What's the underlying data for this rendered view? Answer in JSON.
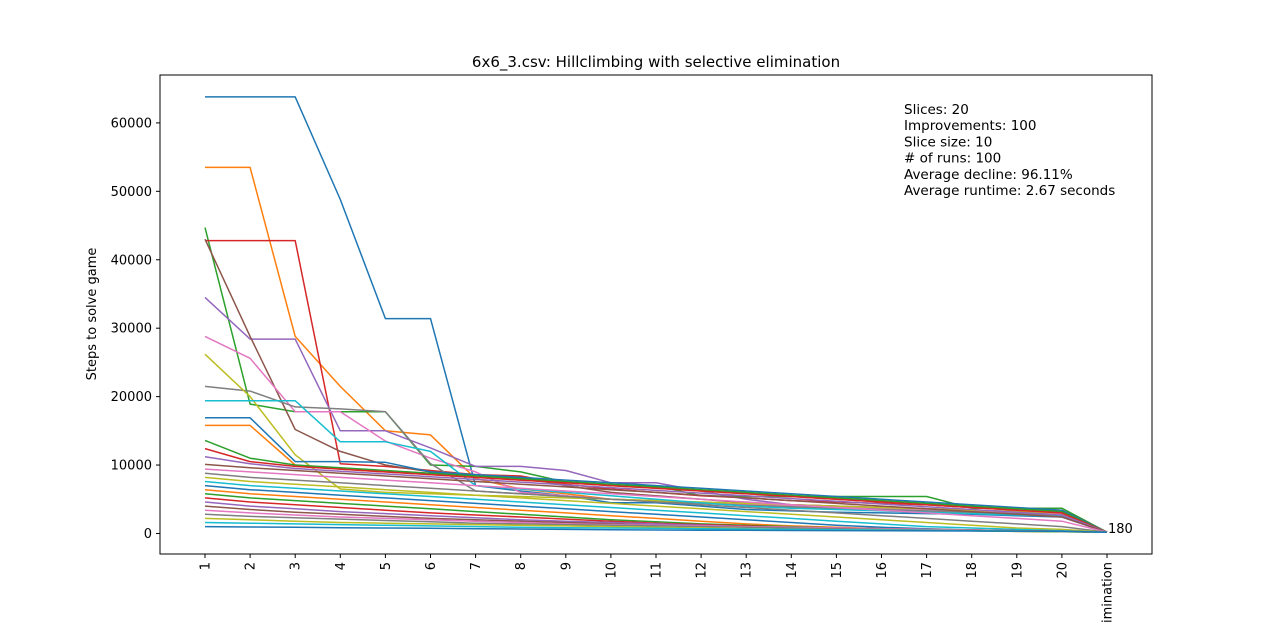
{
  "chart_data": {
    "type": "line",
    "title": "6x6_3.csv: Hillclimbing with selective elimination",
    "ylabel": "Steps to solve game",
    "xlabel": "",
    "categories": [
      "1",
      "2",
      "3",
      "4",
      "5",
      "6",
      "7",
      "8",
      "9",
      "10",
      "11",
      "12",
      "13",
      "14",
      "15",
      "16",
      "17",
      "18",
      "19",
      "20",
      "Elimination"
    ],
    "ylim": [
      -3000,
      67000
    ],
    "yticks": [
      0,
      10000,
      20000,
      30000,
      40000,
      50000,
      60000
    ],
    "ytick_labels": [
      "0",
      "10000",
      "20000",
      "30000",
      "40000",
      "50000",
      "60000"
    ],
    "grid": false,
    "end_annotation": "180",
    "info_lines": [
      "Slices: 20",
      "Improvements: 100",
      "Slice size: 10",
      "# of runs: 100",
      "Average decline: 96.11%",
      "Average runtime: 2.67 seconds"
    ],
    "colors": [
      "#1f77b4",
      "#ff7f0e",
      "#2ca02c",
      "#d62728",
      "#9467bd",
      "#8c564b",
      "#e377c2",
      "#7f7f7f",
      "#bcbd22",
      "#17becf"
    ],
    "series": [
      {
        "values": [
          63800,
          63800,
          63800,
          48800,
          31400,
          31400,
          7000,
          6200,
          5500,
          4500,
          4500,
          4000,
          3500,
          3300,
          3100,
          3000,
          2900,
          2800,
          2600,
          2400,
          180
        ]
      },
      {
        "values": [
          53500,
          53500,
          28800,
          21500,
          15000,
          14400,
          8000,
          6500,
          5800,
          5000,
          4800,
          4500,
          4200,
          3800,
          3600,
          3400,
          3200,
          3000,
          2800,
          2600,
          180
        ]
      },
      {
        "values": [
          44700,
          18900,
          17800,
          17800,
          17800,
          10000,
          9800,
          9000,
          7500,
          7000,
          7000,
          5500,
          5400,
          5400,
          5400,
          5400,
          5400,
          3700,
          3700,
          3700,
          180
        ]
      },
      {
        "values": [
          42800,
          42800,
          42800,
          10200,
          9800,
          9200,
          8600,
          8400,
          7200,
          6500,
          6000,
          5500,
          5200,
          4800,
          4600,
          4400,
          4200,
          3800,
          3600,
          3400,
          180
        ]
      },
      {
        "values": [
          34500,
          28400,
          28400,
          15000,
          15000,
          12500,
          9800,
          9800,
          9200,
          7400,
          7400,
          6200,
          5000,
          4200,
          4000,
          3800,
          3600,
          3400,
          3200,
          3000,
          180
        ]
      },
      {
        "values": [
          43000,
          28800,
          15200,
          12000,
          10000,
          9000,
          8500,
          8200,
          7000,
          6000,
          5500,
          5000,
          4500,
          4200,
          4000,
          3800,
          3600,
          3400,
          3200,
          3000,
          180
        ]
      },
      {
        "values": [
          28800,
          25600,
          17800,
          17800,
          13500,
          11000,
          9000,
          6000,
          5500,
          5000,
          4800,
          4500,
          4300,
          4100,
          3900,
          3700,
          3500,
          3300,
          3100,
          2900,
          180
        ]
      },
      {
        "values": [
          21500,
          20800,
          18500,
          18200,
          17800,
          10200,
          6200,
          5800,
          5400,
          5000,
          4700,
          4400,
          4100,
          3900,
          3700,
          3500,
          3300,
          3100,
          2900,
          2700,
          180
        ]
      },
      {
        "values": [
          26200,
          20000,
          11500,
          6500,
          6000,
          5800,
          5600,
          5400,
          5200,
          5000,
          4800,
          4600,
          4400,
          4200,
          4000,
          3800,
          3600,
          3400,
          3200,
          3000,
          180
        ]
      },
      {
        "values": [
          19400,
          19400,
          19400,
          13400,
          13400,
          12000,
          7000,
          6500,
          6000,
          5500,
          5000,
          4500,
          4000,
          3700,
          3500,
          3300,
          3100,
          2900,
          2700,
          2500,
          180
        ]
      },
      {
        "values": [
          16900,
          16900,
          10500,
          10500,
          10400,
          9000,
          8600,
          8200,
          7800,
          7400,
          7000,
          6600,
          6200,
          5800,
          5400,
          5000,
          4600,
          4200,
          3800,
          3400,
          180
        ]
      },
      {
        "values": [
          15800,
          15800,
          10000,
          9400,
          9000,
          8600,
          8200,
          7800,
          7400,
          7000,
          6600,
          6200,
          5800,
          5400,
          5000,
          4600,
          4200,
          3800,
          3400,
          3000,
          180
        ]
      },
      {
        "values": [
          13600,
          11000,
          10000,
          9600,
          9200,
          8800,
          8400,
          8000,
          7600,
          7200,
          6800,
          6400,
          6000,
          5600,
          5200,
          4800,
          4400,
          4000,
          3600,
          3200,
          180
        ]
      },
      {
        "values": [
          12400,
          10500,
          9800,
          9400,
          9000,
          8600,
          8200,
          7800,
          7400,
          7000,
          6600,
          6200,
          5800,
          5400,
          5000,
          4600,
          4200,
          3800,
          3400,
          3000,
          180
        ]
      },
      {
        "values": [
          11200,
          10200,
          9500,
          9100,
          8700,
          8300,
          7900,
          7500,
          7100,
          6700,
          6300,
          5900,
          5500,
          5100,
          4700,
          4300,
          3900,
          3500,
          3100,
          2700,
          180
        ]
      },
      {
        "values": [
          10100,
          9600,
          9200,
          8800,
          8400,
          8000,
          7600,
          7200,
          6800,
          6400,
          6000,
          5600,
          5200,
          4800,
          4400,
          4000,
          3600,
          3200,
          2800,
          2400,
          180
        ]
      },
      {
        "values": [
          9400,
          9000,
          8600,
          8200,
          7800,
          7400,
          7000,
          6600,
          6200,
          5800,
          5400,
          5000,
          4600,
          4200,
          3800,
          3400,
          3000,
          2600,
          2200,
          1800,
          180
        ]
      },
      {
        "values": [
          8800,
          8200,
          7800,
          7400,
          7000,
          6600,
          6200,
          5800,
          5400,
          5000,
          4600,
          4200,
          3800,
          3400,
          3000,
          2600,
          2200,
          1800,
          1400,
          1000,
          180
        ]
      },
      {
        "values": [
          8200,
          7600,
          7200,
          6800,
          6400,
          6000,
          5600,
          5200,
          4800,
          4400,
          4000,
          3600,
          3200,
          2800,
          2400,
          2000,
          1600,
          1200,
          800,
          600,
          180
        ]
      },
      {
        "values": [
          7600,
          7000,
          6600,
          6200,
          5800,
          5400,
          5000,
          4600,
          4200,
          3800,
          3400,
          3000,
          2600,
          2200,
          1800,
          1400,
          1000,
          800,
          600,
          400,
          180
        ]
      },
      {
        "values": [
          7000,
          6400,
          6000,
          5600,
          5200,
          4800,
          4400,
          4000,
          3600,
          3200,
          2800,
          2400,
          2000,
          1600,
          1200,
          900,
          700,
          500,
          400,
          300,
          180
        ]
      },
      {
        "values": [
          6400,
          5800,
          5400,
          5000,
          4600,
          4200,
          3800,
          3400,
          3000,
          2600,
          2200,
          1800,
          1400,
          1100,
          900,
          700,
          500,
          400,
          300,
          250,
          180
        ]
      },
      {
        "values": [
          5800,
          5200,
          4800,
          4400,
          4000,
          3600,
          3200,
          2800,
          2400,
          2000,
          1700,
          1400,
          1200,
          1000,
          800,
          600,
          500,
          400,
          300,
          250,
          180
        ]
      },
      {
        "values": [
          5200,
          4600,
          4200,
          3800,
          3400,
          3000,
          2700,
          2400,
          2100,
          1800,
          1500,
          1300,
          1100,
          900,
          800,
          700,
          600,
          500,
          400,
          300,
          180
        ]
      },
      {
        "values": [
          4600,
          4000,
          3600,
          3200,
          2900,
          2600,
          2300,
          2000,
          1800,
          1600,
          1400,
          1200,
          1000,
          900,
          800,
          700,
          600,
          500,
          400,
          300,
          180
        ]
      },
      {
        "values": [
          4000,
          3500,
          3100,
          2800,
          2500,
          2200,
          2000,
          1800,
          1600,
          1400,
          1200,
          1100,
          1000,
          900,
          800,
          700,
          600,
          500,
          400,
          300,
          180
        ]
      },
      {
        "values": [
          3400,
          3000,
          2700,
          2400,
          2200,
          2000,
          1800,
          1600,
          1400,
          1300,
          1200,
          1100,
          1000,
          900,
          800,
          700,
          600,
          500,
          400,
          300,
          180
        ]
      },
      {
        "values": [
          2800,
          2500,
          2300,
          2100,
          1900,
          1700,
          1500,
          1400,
          1300,
          1200,
          1100,
          1000,
          900,
          800,
          700,
          600,
          500,
          450,
          400,
          350,
          180
        ]
      },
      {
        "values": [
          2200,
          2000,
          1800,
          1600,
          1500,
          1400,
          1300,
          1200,
          1100,
          1000,
          900,
          800,
          700,
          600,
          550,
          500,
          450,
          400,
          350,
          300,
          180
        ]
      },
      {
        "values": [
          1600,
          1500,
          1400,
          1300,
          1200,
          1100,
          1000,
          900,
          850,
          800,
          750,
          700,
          650,
          600,
          550,
          500,
          450,
          400,
          350,
          300,
          180
        ]
      },
      {
        "values": [
          1000,
          950,
          900,
          850,
          800,
          750,
          700,
          650,
          600,
          550,
          500,
          480,
          460,
          440,
          420,
          400,
          380,
          360,
          340,
          320,
          180
        ]
      }
    ]
  }
}
